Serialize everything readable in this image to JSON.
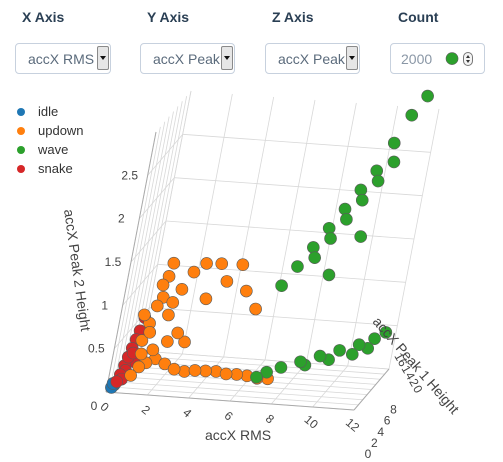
{
  "controls": {
    "x_axis": {
      "label": "X Axis",
      "value": "accX RMS"
    },
    "y_axis": {
      "label": "Y Axis",
      "value": "accX Peak"
    },
    "z_axis": {
      "label": "Z Axis",
      "value": "accX Peak"
    },
    "count": {
      "label": "Count",
      "value": "2000"
    }
  },
  "legend": [
    {
      "name": "idle",
      "color": "#1f77b4"
    },
    {
      "name": "updown",
      "color": "#ff7f0e"
    },
    {
      "name": "wave",
      "color": "#2ca02c"
    },
    {
      "name": "snake",
      "color": "#d62728"
    }
  ],
  "chart_data": {
    "type": "scatter",
    "projection": "3d",
    "xlabel": "accX RMS",
    "ylabel": "accX Peak 1 Height",
    "zlabel": "accX Peak 2 Height",
    "x_ticks": [
      "0",
      "2",
      "4",
      "6",
      "8",
      "10",
      "12"
    ],
    "y_ticks": [
      "0",
      "2",
      "4",
      "6",
      "8",
      "10",
      "12",
      "14",
      "16"
    ],
    "y_ticks_overlap_text": "16 1 4 2 0",
    "y_ticks_drawn": [
      "8",
      "6",
      "4",
      "2",
      "0"
    ],
    "z_ticks": [
      "0",
      "0.5",
      "1",
      "1.5",
      "2",
      "2.5"
    ],
    "grid": true,
    "legend_position": "top-left",
    "series": [
      {
        "name": "idle",
        "color": "#1f77b4",
        "points": [
          [
            0.2,
            0.2,
            0.05
          ],
          [
            0.3,
            0.3,
            0.08
          ],
          [
            0.25,
            0.1,
            0.1
          ]
        ]
      },
      {
        "name": "snake",
        "color": "#d62728",
        "points": [
          [
            0.4,
            0.2,
            0.12
          ],
          [
            0.5,
            0.3,
            0.2
          ],
          [
            0.6,
            0.5,
            0.3
          ],
          [
            0.7,
            0.5,
            0.4
          ],
          [
            0.8,
            0.6,
            0.5
          ],
          [
            0.9,
            0.7,
            0.6
          ],
          [
            1.0,
            0.8,
            0.7
          ],
          [
            0.7,
            0.4,
            0.25
          ],
          [
            0.6,
            0.3,
            0.15
          ],
          [
            1.1,
            0.9,
            0.85
          ],
          [
            0.9,
            0.5,
            0.45
          ],
          [
            1.0,
            0.6,
            0.35
          ]
        ]
      },
      {
        "name": "updown",
        "color": "#ff7f0e",
        "points": [
          [
            1.0,
            0.3,
            0.2
          ],
          [
            1.3,
            0.4,
            0.3
          ],
          [
            1.6,
            0.5,
            0.35
          ],
          [
            2.0,
            0.6,
            0.4
          ],
          [
            2.5,
            0.6,
            0.35
          ],
          [
            3.0,
            0.5,
            0.3
          ],
          [
            3.5,
            0.6,
            0.28
          ],
          [
            4.0,
            0.6,
            0.3
          ],
          [
            4.5,
            0.7,
            0.3
          ],
          [
            5.0,
            0.8,
            0.3
          ],
          [
            5.5,
            0.8,
            0.28
          ],
          [
            6.0,
            0.9,
            0.28
          ],
          [
            6.5,
            1.0,
            0.27
          ],
          [
            7.0,
            1.0,
            0.25
          ],
          [
            7.5,
            1.1,
            0.25
          ],
          [
            1.2,
            0.5,
            0.6
          ],
          [
            1.4,
            0.6,
            0.8
          ],
          [
            1.6,
            0.7,
            1.0
          ],
          [
            1.8,
            0.8,
            1.1
          ],
          [
            1.5,
            0.5,
            0.7
          ],
          [
            2.2,
            0.9,
            0.9
          ],
          [
            2.6,
            1.0,
            1.2
          ],
          [
            3.0,
            1.2,
            1.4
          ],
          [
            3.5,
            1.5,
            1.5
          ],
          [
            4.2,
            1.8,
            1.5
          ],
          [
            4.6,
            1.9,
            1.3
          ],
          [
            5.2,
            2.0,
            1.5
          ],
          [
            1.8,
            0.6,
            0.5
          ],
          [
            2.4,
            0.8,
            0.6
          ],
          [
            1.3,
            0.4,
            0.45
          ],
          [
            2.0,
            0.7,
            1.5
          ],
          [
            1.9,
            0.6,
            1.35
          ],
          [
            2.8,
            1.0,
            0.7
          ],
          [
            3.2,
            1.1,
            0.6
          ],
          [
            1.1,
            0.3,
            0.9
          ],
          [
            1.7,
            0.5,
            1.25
          ],
          [
            2.3,
            0.8,
            1.05
          ],
          [
            3.8,
            1.4,
            1.1
          ],
          [
            5.6,
            2.1,
            1.2
          ],
          [
            6.2,
            2.2,
            1.0
          ]
        ]
      },
      {
        "name": "wave",
        "color": "#2ca02c",
        "points": [
          [
            7.0,
            5.0,
            1.2
          ],
          [
            7.5,
            6.0,
            1.4
          ],
          [
            8.0,
            7.0,
            1.6
          ],
          [
            8.5,
            8.0,
            1.8
          ],
          [
            9.0,
            9.0,
            2.0
          ],
          [
            9.5,
            10.0,
            2.2
          ],
          [
            10.0,
            11.0,
            2.4
          ],
          [
            10.5,
            12.0,
            2.7
          ],
          [
            11.0,
            13.0,
            3.0
          ],
          [
            8.2,
            6.5,
            1.5
          ],
          [
            9.2,
            8.5,
            1.9
          ],
          [
            10.2,
            10.5,
            2.3
          ],
          [
            7.8,
            4.0,
            0.3
          ],
          [
            8.6,
            5.0,
            0.35
          ],
          [
            9.4,
            6.0,
            0.4
          ],
          [
            10.2,
            7.0,
            0.45
          ],
          [
            11.0,
            8.0,
            0.5
          ],
          [
            11.6,
            9.0,
            0.55
          ],
          [
            12.0,
            10.0,
            0.6
          ],
          [
            8.8,
            5.5,
            0.3
          ],
          [
            9.8,
            6.5,
            0.35
          ],
          [
            10.8,
            7.5,
            0.4
          ],
          [
            11.4,
            8.5,
            0.45
          ],
          [
            7.2,
            3.5,
            0.25
          ],
          [
            6.8,
            3.0,
            0.2
          ],
          [
            8.7,
            7.5,
            1.7
          ],
          [
            9.7,
            9.5,
            2.1
          ],
          [
            10.7,
            11.5,
            2.5
          ],
          [
            11.5,
            14.0,
            3.2
          ],
          [
            9.0,
            7.0,
            1.3
          ],
          [
            10.0,
            9.0,
            1.7
          ],
          [
            12.2,
            15.5,
            3.6
          ]
        ]
      }
    ]
  },
  "window_title": ""
}
